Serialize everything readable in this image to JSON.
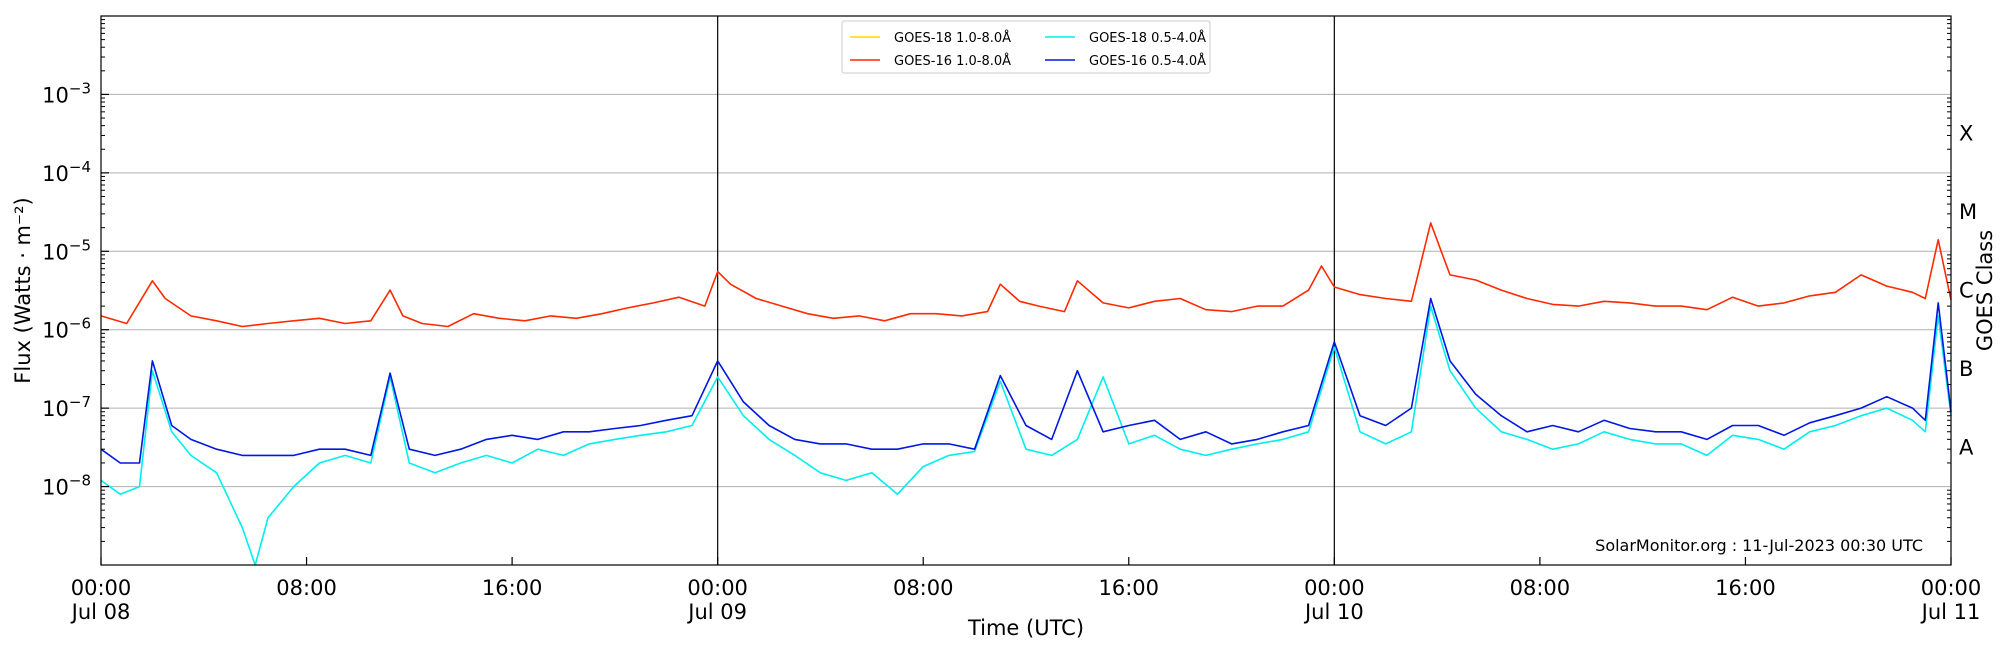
{
  "chart_data": {
    "type": "line",
    "title": "",
    "xlabel": "Time (UTC)",
    "ylabel": "Flux (Watts · m⁻²)",
    "y2label": "GOES Class",
    "y_scale": "log",
    "ylim": [
      1e-09,
      0.01
    ],
    "xlim": [
      "2023-07-08 00:00",
      "2023-07-11 00:00"
    ],
    "grid": "horizontal",
    "legend_position": "top-center",
    "credit": "SolarMonitor.org : 11-Jul-2023 00:30 UTC",
    "y_ticks": [
      {
        "value": 1e-08,
        "mant": "10",
        "exp": "−8"
      },
      {
        "value": 1e-07,
        "mant": "10",
        "exp": "−7"
      },
      {
        "value": 1e-06,
        "mant": "10",
        "exp": "−6"
      },
      {
        "value": 1e-05,
        "mant": "10",
        "exp": "−5"
      },
      {
        "value": 0.0001,
        "mant": "10",
        "exp": "−4"
      },
      {
        "value": 0.001,
        "mant": "10",
        "exp": "−3"
      }
    ],
    "x_ticks": [
      {
        "time": "2023-07-08 00:00",
        "line1": "00:00",
        "line2": "Jul 08"
      },
      {
        "time": "2023-07-08 08:00",
        "line1": "08:00",
        "line2": ""
      },
      {
        "time": "2023-07-08 16:00",
        "line1": "16:00",
        "line2": ""
      },
      {
        "time": "2023-07-09 00:00",
        "line1": "00:00",
        "line2": "Jul 09"
      },
      {
        "time": "2023-07-09 08:00",
        "line1": "08:00",
        "line2": ""
      },
      {
        "time": "2023-07-09 16:00",
        "line1": "16:00",
        "line2": ""
      },
      {
        "time": "2023-07-10 00:00",
        "line1": "00:00",
        "line2": "Jul 10"
      },
      {
        "time": "2023-07-10 08:00",
        "line1": "08:00",
        "line2": ""
      },
      {
        "time": "2023-07-10 16:00",
        "line1": "16:00",
        "line2": ""
      },
      {
        "time": "2023-07-11 00:00",
        "line1": "00:00",
        "line2": "Jul 11"
      }
    ],
    "day_boundaries": [
      "2023-07-09 00:00",
      "2023-07-10 00:00"
    ],
    "goes_classes": [
      {
        "label": "A",
        "flux": 3.16e-08
      },
      {
        "label": "B",
        "flux": 3.16e-07
      },
      {
        "label": "C",
        "flux": 3.16e-06
      },
      {
        "label": "M",
        "flux": 3.16e-05
      },
      {
        "label": "X",
        "flux": 0.000316
      }
    ],
    "series": [
      {
        "name": "GOES-18 1.0-8.0Å",
        "color": "#ffd700",
        "x": [],
        "y": []
      },
      {
        "name": "GOES-16 1.0-8.0Å",
        "color": "#ff2a00",
        "x": [
          "2023-07-08 00:00",
          "2023-07-08 01:00",
          "2023-07-08 02:00",
          "2023-07-08 02:30",
          "2023-07-08 03:30",
          "2023-07-08 04:30",
          "2023-07-08 05:30",
          "2023-07-08 06:30",
          "2023-07-08 07:30",
          "2023-07-08 08:30",
          "2023-07-08 09:30",
          "2023-07-08 10:30",
          "2023-07-08 11:15",
          "2023-07-08 11:45",
          "2023-07-08 12:30",
          "2023-07-08 13:30",
          "2023-07-08 14:30",
          "2023-07-08 15:30",
          "2023-07-08 16:30",
          "2023-07-08 17:30",
          "2023-07-08 18:30",
          "2023-07-08 19:30",
          "2023-07-08 20:30",
          "2023-07-08 21:30",
          "2023-07-08 22:30",
          "2023-07-08 23:30",
          "2023-07-09 00:00",
          "2023-07-09 00:30",
          "2023-07-09 01:30",
          "2023-07-09 02:30",
          "2023-07-09 03:30",
          "2023-07-09 04:30",
          "2023-07-09 05:30",
          "2023-07-09 06:30",
          "2023-07-09 07:30",
          "2023-07-09 08:30",
          "2023-07-09 09:30",
          "2023-07-09 10:30",
          "2023-07-09 11:00",
          "2023-07-09 11:45",
          "2023-07-09 12:30",
          "2023-07-09 13:30",
          "2023-07-09 14:00",
          "2023-07-09 15:00",
          "2023-07-09 16:00",
          "2023-07-09 17:00",
          "2023-07-09 18:00",
          "2023-07-09 19:00",
          "2023-07-09 20:00",
          "2023-07-09 21:00",
          "2023-07-09 22:00",
          "2023-07-09 23:00",
          "2023-07-09 23:30",
          "2023-07-10 00:00",
          "2023-07-10 01:00",
          "2023-07-10 02:00",
          "2023-07-10 03:00",
          "2023-07-10 03:45",
          "2023-07-10 04:30",
          "2023-07-10 05:30",
          "2023-07-10 06:30",
          "2023-07-10 07:30",
          "2023-07-10 08:30",
          "2023-07-10 09:30",
          "2023-07-10 10:30",
          "2023-07-10 11:30",
          "2023-07-10 12:30",
          "2023-07-10 13:30",
          "2023-07-10 14:30",
          "2023-07-10 15:30",
          "2023-07-10 16:30",
          "2023-07-10 17:30",
          "2023-07-10 18:30",
          "2023-07-10 19:30",
          "2023-07-10 20:30",
          "2023-07-10 21:30",
          "2023-07-10 22:30",
          "2023-07-10 23:00",
          "2023-07-10 23:30",
          "2023-07-11 00:00"
        ],
        "y": [
          1.5e-06,
          1.2e-06,
          4.2e-06,
          2.5e-06,
          1.5e-06,
          1.3e-06,
          1.1e-06,
          1.2e-06,
          1.3e-06,
          1.4e-06,
          1.2e-06,
          1.3e-06,
          3.2e-06,
          1.5e-06,
          1.2e-06,
          1.1e-06,
          1.6e-06,
          1.4e-06,
          1.3e-06,
          1.5e-06,
          1.4e-06,
          1.6e-06,
          1.9e-06,
          2.2e-06,
          2.6e-06,
          2e-06,
          5.5e-06,
          3.8e-06,
          2.5e-06,
          2e-06,
          1.6e-06,
          1.4e-06,
          1.5e-06,
          1.3e-06,
          1.6e-06,
          1.6e-06,
          1.5e-06,
          1.7e-06,
          3.8e-06,
          2.3e-06,
          2e-06,
          1.7e-06,
          4.2e-06,
          2.2e-06,
          1.9e-06,
          2.3e-06,
          2.5e-06,
          1.8e-06,
          1.7e-06,
          2e-06,
          2e-06,
          3.2e-06,
          6.5e-06,
          3.5e-06,
          2.8e-06,
          2.5e-06,
          2.3e-06,
          2.3e-05,
          5e-06,
          4.3e-06,
          3.2e-06,
          2.5e-06,
          2.1e-06,
          2e-06,
          2.3e-06,
          2.2e-06,
          2e-06,
          2e-06,
          1.8e-06,
          2.6e-06,
          2e-06,
          2.2e-06,
          2.7e-06,
          3e-06,
          5e-06,
          3.6e-06,
          3e-06,
          2.5e-06,
          1.4e-05,
          2.4e-06
        ]
      },
      {
        "name": "GOES-18 0.5-4.0Å",
        "color": "#00eeee",
        "x": [
          "2023-07-08 00:00",
          "2023-07-08 00:45",
          "2023-07-08 01:30",
          "2023-07-08 02:00",
          "2023-07-08 02:45",
          "2023-07-08 03:30",
          "2023-07-08 04:30",
          "2023-07-08 05:30",
          "2023-07-08 06:00",
          "2023-07-08 06:30",
          "2023-07-08 07:30",
          "2023-07-08 08:30",
          "2023-07-08 09:30",
          "2023-07-08 10:30",
          "2023-07-08 11:15",
          "2023-07-08 12:00",
          "2023-07-08 13:00",
          "2023-07-08 14:00",
          "2023-07-08 15:00",
          "2023-07-08 16:00",
          "2023-07-08 17:00",
          "2023-07-08 18:00",
          "2023-07-08 19:00",
          "2023-07-08 20:00",
          "2023-07-08 21:00",
          "2023-07-08 22:00",
          "2023-07-08 23:00",
          "2023-07-09 00:00",
          "2023-07-09 01:00",
          "2023-07-09 02:00",
          "2023-07-09 03:00",
          "2023-07-09 04:00",
          "2023-07-09 05:00",
          "2023-07-09 06:00",
          "2023-07-09 07:00",
          "2023-07-09 08:00",
          "2023-07-09 09:00",
          "2023-07-09 10:00",
          "2023-07-09 11:00",
          "2023-07-09 12:00",
          "2023-07-09 13:00",
          "2023-07-09 14:00",
          "2023-07-09 15:00",
          "2023-07-09 16:00",
          "2023-07-09 17:00",
          "2023-07-09 18:00",
          "2023-07-09 19:00",
          "2023-07-09 20:00",
          "2023-07-09 21:00",
          "2023-07-09 22:00",
          "2023-07-09 23:00",
          "2023-07-10 00:00",
          "2023-07-10 01:00",
          "2023-07-10 02:00",
          "2023-07-10 03:00",
          "2023-07-10 03:45",
          "2023-07-10 04:30",
          "2023-07-10 05:30",
          "2023-07-10 06:30",
          "2023-07-10 07:30",
          "2023-07-10 08:30",
          "2023-07-10 09:30",
          "2023-07-10 10:30",
          "2023-07-10 11:30",
          "2023-07-10 12:30",
          "2023-07-10 13:30",
          "2023-07-10 14:30",
          "2023-07-10 15:30",
          "2023-07-10 16:30",
          "2023-07-10 17:30",
          "2023-07-10 18:30",
          "2023-07-10 19:30",
          "2023-07-10 20:30",
          "2023-07-10 21:30",
          "2023-07-10 22:30",
          "2023-07-10 23:00",
          "2023-07-10 23:30",
          "2023-07-11 00:00"
        ],
        "y": [
          1.2e-08,
          8e-09,
          1e-08,
          3e-07,
          5e-08,
          2.5e-08,
          1.5e-08,
          3e-09,
          1e-09,
          4e-09,
          1e-08,
          2e-08,
          2.5e-08,
          2e-08,
          2.5e-07,
          2e-08,
          1.5e-08,
          2e-08,
          2.5e-08,
          2e-08,
          3e-08,
          2.5e-08,
          3.5e-08,
          4e-08,
          4.5e-08,
          5e-08,
          6e-08,
          2.5e-07,
          8e-08,
          4e-08,
          2.5e-08,
          1.5e-08,
          1.2e-08,
          1.5e-08,
          8e-09,
          1.8e-08,
          2.5e-08,
          2.8e-08,
          2.2e-07,
          3e-08,
          2.5e-08,
          4e-08,
          2.5e-07,
          3.5e-08,
          4.5e-08,
          3e-08,
          2.5e-08,
          3e-08,
          3.5e-08,
          4e-08,
          5e-08,
          6e-07,
          5e-08,
          3.5e-08,
          5e-08,
          2e-06,
          3e-07,
          1e-07,
          5e-08,
          4e-08,
          3e-08,
          3.5e-08,
          5e-08,
          4e-08,
          3.5e-08,
          3.5e-08,
          2.5e-08,
          4.5e-08,
          4e-08,
          3e-08,
          5e-08,
          6e-08,
          8e-08,
          1e-07,
          7e-08,
          5e-08,
          1.5e-06,
          8e-08
        ]
      },
      {
        "name": "GOES-16 0.5-4.0Å",
        "color": "#0018e0",
        "x": [
          "2023-07-08 00:00",
          "2023-07-08 00:45",
          "2023-07-08 01:30",
          "2023-07-08 02:00",
          "2023-07-08 02:45",
          "2023-07-08 03:30",
          "2023-07-08 04:30",
          "2023-07-08 05:30",
          "2023-07-08 06:30",
          "2023-07-08 07:30",
          "2023-07-08 08:30",
          "2023-07-08 09:30",
          "2023-07-08 10:30",
          "2023-07-08 11:15",
          "2023-07-08 12:00",
          "2023-07-08 13:00",
          "2023-07-08 14:00",
          "2023-07-08 15:00",
          "2023-07-08 16:00",
          "2023-07-08 17:00",
          "2023-07-08 18:00",
          "2023-07-08 19:00",
          "2023-07-08 20:00",
          "2023-07-08 21:00",
          "2023-07-08 22:00",
          "2023-07-08 23:00",
          "2023-07-09 00:00",
          "2023-07-09 01:00",
          "2023-07-09 02:00",
          "2023-07-09 03:00",
          "2023-07-09 04:00",
          "2023-07-09 05:00",
          "2023-07-09 06:00",
          "2023-07-09 07:00",
          "2023-07-09 08:00",
          "2023-07-09 09:00",
          "2023-07-09 10:00",
          "2023-07-09 11:00",
          "2023-07-09 12:00",
          "2023-07-09 13:00",
          "2023-07-09 14:00",
          "2023-07-09 15:00",
          "2023-07-09 16:00",
          "2023-07-09 17:00",
          "2023-07-09 18:00",
          "2023-07-09 19:00",
          "2023-07-09 20:00",
          "2023-07-09 21:00",
          "2023-07-09 22:00",
          "2023-07-09 23:00",
          "2023-07-10 00:00",
          "2023-07-10 01:00",
          "2023-07-10 02:00",
          "2023-07-10 03:00",
          "2023-07-10 03:45",
          "2023-07-10 04:30",
          "2023-07-10 05:30",
          "2023-07-10 06:30",
          "2023-07-10 07:30",
          "2023-07-10 08:30",
          "2023-07-10 09:30",
          "2023-07-10 10:30",
          "2023-07-10 11:30",
          "2023-07-10 12:30",
          "2023-07-10 13:30",
          "2023-07-10 14:30",
          "2023-07-10 15:30",
          "2023-07-10 16:30",
          "2023-07-10 17:30",
          "2023-07-10 18:30",
          "2023-07-10 19:30",
          "2023-07-10 20:30",
          "2023-07-10 21:30",
          "2023-07-10 22:30",
          "2023-07-10 23:00",
          "2023-07-10 23:30",
          "2023-07-11 00:00"
        ],
        "y": [
          3e-08,
          2e-08,
          2e-08,
          4e-07,
          6e-08,
          4e-08,
          3e-08,
          2.5e-08,
          2.5e-08,
          2.5e-08,
          3e-08,
          3e-08,
          2.5e-08,
          2.8e-07,
          3e-08,
          2.5e-08,
          3e-08,
          4e-08,
          4.5e-08,
          4e-08,
          5e-08,
          5e-08,
          5.5e-08,
          6e-08,
          7e-08,
          8e-08,
          4e-07,
          1.2e-07,
          6e-08,
          4e-08,
          3.5e-08,
          3.5e-08,
          3e-08,
          3e-08,
          3.5e-08,
          3.5e-08,
          3e-08,
          2.6e-07,
          6e-08,
          4e-08,
          3e-07,
          5e-08,
          6e-08,
          7e-08,
          4e-08,
          5e-08,
          3.5e-08,
          4e-08,
          5e-08,
          6e-08,
          7e-07,
          8e-08,
          6e-08,
          1e-07,
          2.5e-06,
          4e-07,
          1.5e-07,
          8e-08,
          5e-08,
          6e-08,
          5e-08,
          7e-08,
          5.5e-08,
          5e-08,
          5e-08,
          4e-08,
          6e-08,
          6e-08,
          4.5e-08,
          6.5e-08,
          8e-08,
          1e-07,
          1.4e-07,
          1e-07,
          7e-08,
          2.2e-06,
          9e-08
        ]
      }
    ]
  }
}
